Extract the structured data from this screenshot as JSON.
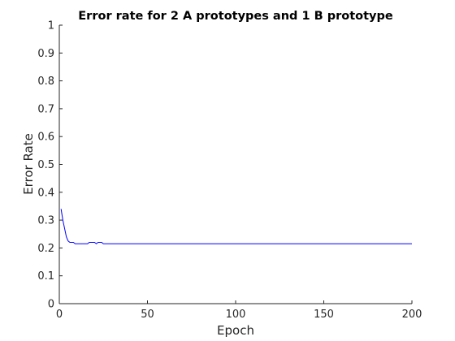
{
  "chart_data": {
    "type": "line",
    "title": "Error rate for 2 A prototypes and 1 B prototype",
    "xlabel": "Epoch",
    "ylabel": "Error Rate",
    "xlim": [
      0,
      200
    ],
    "ylim": [
      0,
      1
    ],
    "xticks": [
      0,
      50,
      100,
      150,
      200
    ],
    "xtick_labels": [
      "0",
      "50",
      "100",
      "150",
      "200"
    ],
    "yticks": [
      0,
      0.1,
      0.2,
      0.3,
      0.4,
      0.5,
      0.6,
      0.7,
      0.8,
      0.9,
      1
    ],
    "ytick_labels": [
      "0",
      "0.1",
      "0.2",
      "0.3",
      "0.4",
      "0.5",
      "0.6",
      "0.7",
      "0.8",
      "0.9",
      "1"
    ],
    "grid": false,
    "series": [
      {
        "color": "#0000ff",
        "x": [
          1,
          2,
          3,
          4,
          5,
          6,
          7,
          8,
          9,
          10,
          11,
          12,
          13,
          14,
          15,
          16,
          17,
          18,
          19,
          20,
          21,
          22,
          23,
          24,
          25,
          30,
          50,
          100,
          150,
          200
        ],
        "y": [
          0.34,
          0.3,
          0.27,
          0.24,
          0.225,
          0.22,
          0.22,
          0.22,
          0.215,
          0.215,
          0.215,
          0.215,
          0.215,
          0.215,
          0.215,
          0.215,
          0.22,
          0.22,
          0.22,
          0.22,
          0.215,
          0.22,
          0.22,
          0.22,
          0.215,
          0.215,
          0.215,
          0.215,
          0.215,
          0.215
        ]
      }
    ]
  }
}
